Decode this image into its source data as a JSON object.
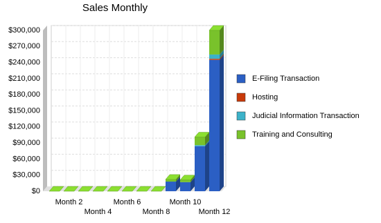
{
  "chart_data": {
    "type": "bar3d_stacked",
    "title": "Sales Monthly",
    "categories": [
      null,
      "Month 2",
      null,
      "Month 4",
      null,
      "Month 6",
      null,
      "Month 8",
      null,
      "Month 10",
      null,
      "Month 12"
    ],
    "series": [
      {
        "name": "E-Filing Transaction",
        "color": "#2b5fc4",
        "values": [
          0,
          0,
          0,
          0,
          0,
          0,
          0,
          0,
          18000,
          17000,
          84000,
          245000
        ]
      },
      {
        "name": "Hosting",
        "color": "#c83a0a",
        "values": [
          0,
          0,
          0,
          0,
          0,
          0,
          0,
          0,
          0,
          0,
          0,
          2000
        ]
      },
      {
        "name": "Judicial Information Transaction",
        "color": "#3cb2c9",
        "values": [
          0,
          0,
          0,
          0,
          0,
          0,
          0,
          0,
          0,
          0,
          2000,
          8000
        ]
      },
      {
        "name": "Training and Consulting",
        "color": "#79c22b",
        "values": [
          0,
          0,
          0,
          0,
          0,
          0,
          0,
          0,
          4000,
          4000,
          15000,
          45000
        ]
      }
    ],
    "ylim": [
      0,
      300000
    ],
    "yticks": [
      {
        "value": 0,
        "label": "$0"
      },
      {
        "value": 30000,
        "label": "$30,000"
      },
      {
        "value": 60000,
        "label": "$60,000"
      },
      {
        "value": 90000,
        "label": "$90,000"
      },
      {
        "value": 120000,
        "label": "$120,000"
      },
      {
        "value": 150000,
        "label": "$150,000"
      },
      {
        "value": 180000,
        "label": "$180,000"
      },
      {
        "value": 210000,
        "label": "$210,000"
      },
      {
        "value": 240000,
        "label": "$240,000"
      },
      {
        "value": 270000,
        "label": "$270,000"
      },
      {
        "value": 300000,
        "label": "$300,000"
      }
    ],
    "grid": true,
    "legend": "right"
  }
}
